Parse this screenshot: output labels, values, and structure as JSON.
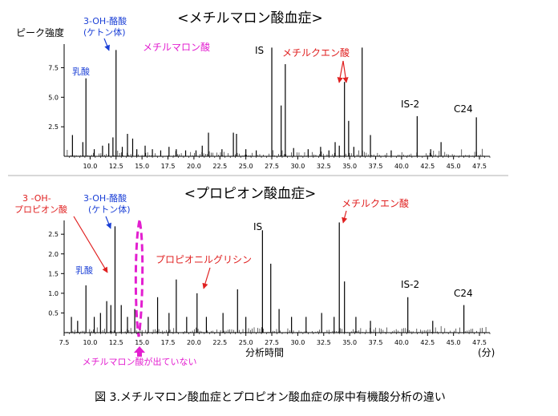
{
  "chart_data": [
    {
      "type": "line",
      "title": "<メチルマロン酸血症>",
      "ylabel": "ピーク強度",
      "xlabel": "",
      "xlim": [
        7.5,
        48.5
      ],
      "ylim": [
        0,
        9.5
      ],
      "x_ticks": [
        "10.0",
        "12.5",
        "15.0",
        "17.5",
        "20.0",
        "22.5",
        "25.0",
        "27.5",
        "30.0",
        "32.5",
        "35.0",
        "37.5",
        "40.0",
        "42.5",
        "45.0",
        "47.5"
      ],
      "y_ticks": [
        "2.5",
        "5.0",
        "7.5"
      ],
      "peaks": [
        {
          "x": 8.3,
          "y": 1.8
        },
        {
          "x": 9.3,
          "y": 1.2
        },
        {
          "x": 9.6,
          "y": 6.6
        },
        {
          "x": 10.4,
          "y": 0.6
        },
        {
          "x": 11.2,
          "y": 0.9
        },
        {
          "x": 11.8,
          "y": 1.1
        },
        {
          "x": 12.2,
          "y": 1.6
        },
        {
          "x": 12.5,
          "y": 9.0
        },
        {
          "x": 13.1,
          "y": 0.8
        },
        {
          "x": 13.6,
          "y": 1.9
        },
        {
          "x": 14.1,
          "y": 1.5
        },
        {
          "x": 14.5,
          "y": 0.6
        },
        {
          "x": 15.3,
          "y": 0.9
        },
        {
          "x": 16.0,
          "y": 0.6
        },
        {
          "x": 16.8,
          "y": 0.5
        },
        {
          "x": 17.6,
          "y": 0.8
        },
        {
          "x": 18.3,
          "y": 0.6
        },
        {
          "x": 19.2,
          "y": 0.5
        },
        {
          "x": 20.2,
          "y": 0.5
        },
        {
          "x": 20.8,
          "y": 0.9
        },
        {
          "x": 21.4,
          "y": 2.0
        },
        {
          "x": 22.7,
          "y": 0.6
        },
        {
          "x": 23.8,
          "y": 2.0
        },
        {
          "x": 24.1,
          "y": 1.9
        },
        {
          "x": 25.0,
          "y": 0.6
        },
        {
          "x": 26.0,
          "y": 0.5
        },
        {
          "x": 27.5,
          "y": 9.2
        },
        {
          "x": 28.4,
          "y": 4.3
        },
        {
          "x": 28.8,
          "y": 7.8
        },
        {
          "x": 29.6,
          "y": 0.7
        },
        {
          "x": 31.0,
          "y": 0.6
        },
        {
          "x": 32.2,
          "y": 0.8
        },
        {
          "x": 33.0,
          "y": 0.5
        },
        {
          "x": 33.6,
          "y": 1.2
        },
        {
          "x": 34.0,
          "y": 0.9
        },
        {
          "x": 34.5,
          "y": 6.3
        },
        {
          "x": 34.9,
          "y": 3.0
        },
        {
          "x": 35.4,
          "y": 0.8
        },
        {
          "x": 36.2,
          "y": 9.2
        },
        {
          "x": 37.0,
          "y": 1.8
        },
        {
          "x": 39.0,
          "y": 0.5
        },
        {
          "x": 41.5,
          "y": 3.4
        },
        {
          "x": 42.8,
          "y": 0.6
        },
        {
          "x": 43.8,
          "y": 1.2
        },
        {
          "x": 47.2,
          "y": 3.3
        }
      ],
      "annotations": [
        {
          "text": "3-OH-酪酸",
          "color": "#1a3fd6"
        },
        {
          "text": "(ケトン体)",
          "color": "#1a3fd6"
        },
        {
          "text": "乳酸",
          "color": "#1a3fd6"
        },
        {
          "text": "メチルマロン酸",
          "color": "#e31fd0"
        },
        {
          "text": "IS",
          "color": "#000000"
        },
        {
          "text": "メチルクエン酸",
          "color": "#e02020"
        },
        {
          "text": "IS-2",
          "color": "#000000"
        },
        {
          "text": "C24",
          "color": "#000000"
        }
      ]
    },
    {
      "type": "line",
      "title": "<プロピオン酸血症>",
      "ylabel": "",
      "xlabel": "分析時間",
      "x_unit": "(分)",
      "xlim": [
        7.5,
        48.5
      ],
      "ylim": [
        0,
        2.85
      ],
      "x_ticks": [
        "7.5",
        "10.0",
        "12.5",
        "15.0",
        "17.5",
        "20.0",
        "22.5",
        "25.0",
        "27.5",
        "30.0",
        "32.5",
        "35.0",
        "37.5",
        "40.0",
        "42.5",
        "45.0",
        "47.5"
      ],
      "y_ticks": [
        "0.5",
        "1.0",
        "1.5",
        "2.0",
        "2.5"
      ],
      "peaks": [
        {
          "x": 8.2,
          "y": 0.4
        },
        {
          "x": 8.8,
          "y": 0.3
        },
        {
          "x": 9.6,
          "y": 1.2
        },
        {
          "x": 10.4,
          "y": 0.4
        },
        {
          "x": 11.0,
          "y": 0.5
        },
        {
          "x": 11.6,
          "y": 0.8
        },
        {
          "x": 12.0,
          "y": 0.7
        },
        {
          "x": 12.4,
          "y": 2.7
        },
        {
          "x": 13.0,
          "y": 0.7
        },
        {
          "x": 13.6,
          "y": 0.4
        },
        {
          "x": 14.3,
          "y": 0.6
        },
        {
          "x": 15.6,
          "y": 0.4
        },
        {
          "x": 16.5,
          "y": 0.9
        },
        {
          "x": 17.6,
          "y": 0.5
        },
        {
          "x": 18.3,
          "y": 1.35
        },
        {
          "x": 19.3,
          "y": 0.4
        },
        {
          "x": 20.3,
          "y": 1.0
        },
        {
          "x": 21.2,
          "y": 0.4
        },
        {
          "x": 22.8,
          "y": 0.5
        },
        {
          "x": 24.2,
          "y": 1.1
        },
        {
          "x": 25.0,
          "y": 0.4
        },
        {
          "x": 26.6,
          "y": 2.6
        },
        {
          "x": 27.4,
          "y": 1.75
        },
        {
          "x": 28.2,
          "y": 0.6
        },
        {
          "x": 29.4,
          "y": 0.4
        },
        {
          "x": 30.8,
          "y": 0.4
        },
        {
          "x": 32.3,
          "y": 0.5
        },
        {
          "x": 33.5,
          "y": 0.4
        },
        {
          "x": 34.0,
          "y": 2.8
        },
        {
          "x": 34.5,
          "y": 1.3
        },
        {
          "x": 35.6,
          "y": 0.4
        },
        {
          "x": 37.0,
          "y": 0.3
        },
        {
          "x": 40.6,
          "y": 0.9
        },
        {
          "x": 43.0,
          "y": 0.3
        },
        {
          "x": 46.0,
          "y": 0.7
        }
      ],
      "annotations": [
        {
          "text": "3 -OH-",
          "color": "#e02020"
        },
        {
          "text": "プロピオン酸",
          "color": "#e02020"
        },
        {
          "text": "3-OH-酪酸",
          "color": "#1a3fd6"
        },
        {
          "text": "(ケトン体)",
          "color": "#1a3fd6"
        },
        {
          "text": "乳酸",
          "color": "#1a3fd6"
        },
        {
          "text": "プロピオニルグリシン",
          "color": "#e02020"
        },
        {
          "text": "IS",
          "color": "#000000"
        },
        {
          "text": "メチルクエン酸",
          "color": "#e02020"
        },
        {
          "text": "IS-2",
          "color": "#000000"
        },
        {
          "text": "C24",
          "color": "#000000"
        },
        {
          "text": "メチルマロン酸が出ていない",
          "color": "#e31fd0"
        }
      ]
    }
  ],
  "caption": "図 3.メチルマロン酸血症とプロピオン酸血症の尿中有機酸分析の違い"
}
